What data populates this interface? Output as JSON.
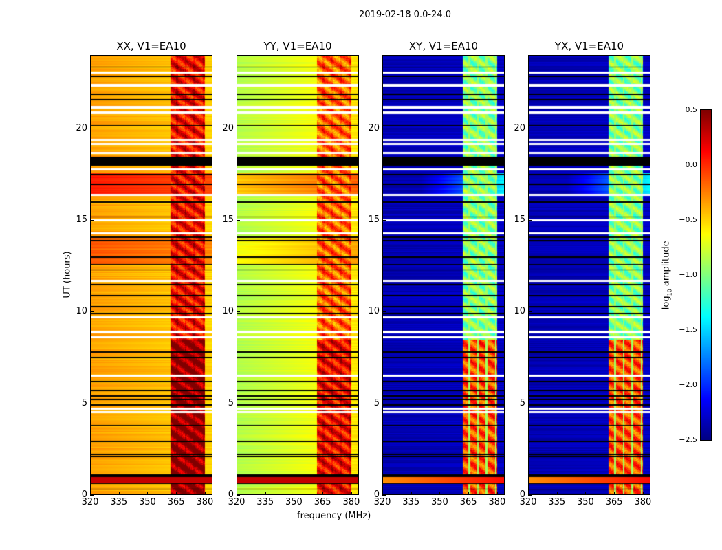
{
  "chart_data": {
    "type": "heatmap",
    "title": "2019-02-18 0.0-24.0",
    "xlabel": "frequency (MHz)",
    "ylabel": "UT (hours)",
    "xlim": [
      320,
      384
    ],
    "ylim": [
      0,
      24
    ],
    "xticks": [
      "320",
      "335",
      "350",
      "365",
      "380"
    ],
    "xtick_values": [
      320,
      335,
      350,
      365,
      380
    ],
    "yticks": [
      "0",
      "5",
      "10",
      "15",
      "20"
    ],
    "ytick_values": [
      0,
      5,
      10,
      15,
      20
    ],
    "colorbar": {
      "label_main": "log",
      "label_sub": "10",
      "label_rest": " amplitude",
      "range": [
        -2.5,
        0.5
      ],
      "ticks": [
        "0.5",
        "0.0",
        "−0.5",
        "−1.0",
        "−1.5",
        "−2.0",
        "−2.5"
      ],
      "tick_values": [
        0.5,
        0.0,
        -0.5,
        -1.0,
        -1.5,
        -2.0,
        -2.5
      ],
      "colormap": "jet"
    },
    "rfi_band_mhz": [
      362,
      380
    ],
    "channel_edges_mhz": [
      365.5,
      370,
      374.5,
      379.5
    ],
    "flagged_white_hours": [
      23.1,
      22.4,
      21.2,
      20.9,
      19.4,
      19.2,
      18.7,
      17.8,
      16.4,
      15.0,
      14.3,
      11.7,
      9.7,
      8.9,
      8.6,
      6.5,
      4.7,
      4.5
    ],
    "flagged_black_hours": [
      23.4,
      22.9,
      21.9,
      21.6,
      20.2,
      17.5,
      17.0,
      16.0,
      15.2,
      14.1,
      13.9,
      13.0,
      12.6,
      12.3,
      11.5,
      10.9,
      10.3,
      9.9,
      7.8,
      7.5,
      6.2,
      5.7,
      5.4,
      5.2,
      4.9,
      3.8,
      2.9,
      2.2,
      2.1,
      1.0,
      0.6,
      0.3
    ],
    "flagged_black_blocks": [
      [
        18.0,
        18.5
      ],
      [
        0.85,
        1.1
      ]
    ],
    "panels": [
      {
        "title": "XX, V1=EA10",
        "base_left": -0.35,
        "base_right": -0.5,
        "band": 0.1,
        "band_low_hours": 0.35
      },
      {
        "title": "YY, V1=EA10",
        "base_left": -0.85,
        "base_right": -0.55,
        "band": -0.2,
        "band_low_hours": 0.3
      },
      {
        "title": "XY, V1=EA10",
        "base_left": -2.35,
        "base_right": -2.3,
        "band": -1.0,
        "band_low_hours": 0.4
      },
      {
        "title": "YX, V1=EA10",
        "base_left": -2.35,
        "base_right": -2.3,
        "band": -1.0,
        "band_low_hours": 0.4
      }
    ]
  }
}
